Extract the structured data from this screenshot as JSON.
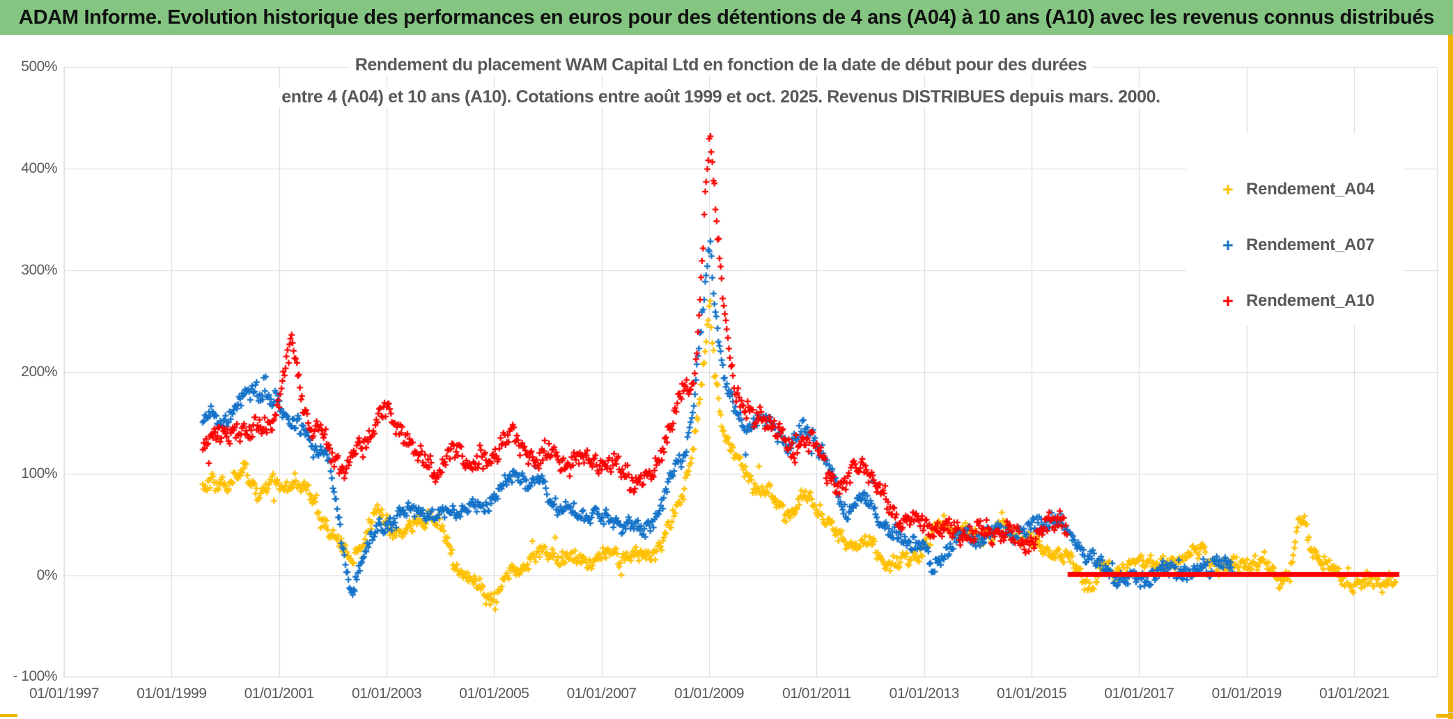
{
  "banner": {
    "title": "ADAM Informe. Evolution historique des performances en euros pour des détentions de 4 ans (A04) à 10 ans (A10) avec les revenus connus distribués",
    "bg_color": "#84C581",
    "accent_color": "#F0B400"
  },
  "chart_data": {
    "type": "scatter",
    "title": "Rendement du placement WAM Capital Ltd en fonction de la date de début pour des durées",
    "subtitle": "entre 4 (A04) et 10 ans (A10). Cotations entre août 1999 et oct. 2025. Revenus DISTRIBUES depuis mars. 2000.",
    "grid": true,
    "legend_position": "right",
    "marker": "+",
    "text_color": "#595959",
    "grid_color": "#D8D8D8",
    "y_axis": {
      "unit": "%",
      "range": [
        -100,
        500
      ],
      "tick_values": [
        500,
        400,
        300,
        200,
        100,
        0,
        -100
      ],
      "tick_labels": [
        "500%",
        "400%",
        "300%",
        "200%",
        "100%",
        "0%",
        "- 100%"
      ]
    },
    "x_axis": {
      "range_years": [
        1997.0,
        2022.55
      ],
      "tick_years": [
        1997,
        1999,
        2001,
        2003,
        2005,
        2007,
        2009,
        2011,
        2013,
        2015,
        2017,
        2019,
        2021
      ],
      "tick_labels": [
        "01/01/1997",
        "01/01/1999",
        "01/01/2001",
        "01/01/2003",
        "01/01/2005",
        "01/01/2007",
        "01/01/2009",
        "01/01/2011",
        "01/01/2013",
        "01/01/2015",
        "01/01/2017",
        "01/01/2019",
        "01/01/2021"
      ]
    },
    "series": [
      {
        "name": "Rendement_A04",
        "color": "#FFC000",
        "marker": "+",
        "start": 1999.58,
        "end": 2021.79,
        "spread": 7,
        "keypoints": [
          [
            1999.58,
            85
          ],
          [
            1999.8,
            88
          ],
          [
            2000.0,
            93
          ],
          [
            2000.35,
            100
          ],
          [
            2000.6,
            84
          ],
          [
            2000.9,
            90
          ],
          [
            2001.05,
            82
          ],
          [
            2001.3,
            97
          ],
          [
            2001.55,
            80
          ],
          [
            2001.75,
            60
          ],
          [
            2001.95,
            45
          ],
          [
            2002.15,
            28
          ],
          [
            2002.35,
            15
          ],
          [
            2002.55,
            30
          ],
          [
            2002.75,
            55
          ],
          [
            2002.9,
            60
          ],
          [
            2003.1,
            45
          ],
          [
            2003.3,
            38
          ],
          [
            2003.55,
            52
          ],
          [
            2003.8,
            58
          ],
          [
            2004.0,
            45
          ],
          [
            2004.3,
            12
          ],
          [
            2004.6,
            -8
          ],
          [
            2004.9,
            -22
          ],
          [
            2005.1,
            -15
          ],
          [
            2005.35,
            2
          ],
          [
            2005.6,
            12
          ],
          [
            2005.9,
            20
          ],
          [
            2006.1,
            22
          ],
          [
            2006.4,
            14
          ],
          [
            2006.7,
            15
          ],
          [
            2007.0,
            18
          ],
          [
            2007.35,
            21
          ],
          [
            2007.7,
            17
          ],
          [
            2008.0,
            23
          ],
          [
            2008.2,
            40
          ],
          [
            2008.45,
            70
          ],
          [
            2008.65,
            110
          ],
          [
            2008.8,
            160
          ],
          [
            2008.95,
            230
          ],
          [
            2009.02,
            270
          ],
          [
            2009.1,
            200
          ],
          [
            2009.25,
            150
          ],
          [
            2009.4,
            125
          ],
          [
            2009.6,
            105
          ],
          [
            2009.85,
            90
          ],
          [
            2010.1,
            80
          ],
          [
            2010.35,
            65
          ],
          [
            2010.55,
            62
          ],
          [
            2010.8,
            78
          ],
          [
            2011.0,
            70
          ],
          [
            2011.25,
            50
          ],
          [
            2011.5,
            30
          ],
          [
            2011.75,
            33
          ],
          [
            2012.0,
            28
          ],
          [
            2012.3,
            14
          ],
          [
            2012.55,
            10
          ],
          [
            2012.8,
            20
          ],
          [
            2013.05,
            30
          ],
          [
            2013.35,
            52
          ],
          [
            2013.6,
            45
          ],
          [
            2013.9,
            36
          ],
          [
            2014.2,
            42
          ],
          [
            2014.5,
            46
          ],
          [
            2014.8,
            38
          ],
          [
            2015.1,
            30
          ],
          [
            2015.4,
            22
          ],
          [
            2015.7,
            15
          ],
          [
            2015.95,
            0
          ],
          [
            2016.1,
            -12
          ],
          [
            2016.35,
            8
          ],
          [
            2016.6,
            4
          ],
          [
            2016.9,
            11
          ],
          [
            2017.2,
            16
          ],
          [
            2017.5,
            7
          ],
          [
            2017.85,
            22
          ],
          [
            2018.15,
            22
          ],
          [
            2018.45,
            8
          ],
          [
            2018.75,
            8
          ],
          [
            2019.05,
            14
          ],
          [
            2019.35,
            10
          ],
          [
            2019.6,
            -4
          ],
          [
            2019.8,
            2
          ],
          [
            2019.98,
            55
          ],
          [
            2020.08,
            50
          ],
          [
            2020.2,
            28
          ],
          [
            2020.4,
            12
          ],
          [
            2020.6,
            4
          ],
          [
            2020.85,
            -2
          ],
          [
            2021.1,
            -12
          ],
          [
            2021.35,
            -5
          ],
          [
            2021.6,
            -5
          ],
          [
            2021.79,
            -6
          ]
        ]
      },
      {
        "name": "Rendement_A07",
        "color": "#1472C8",
        "marker": "+",
        "start": 1999.58,
        "end": 2018.75,
        "spread": 7,
        "keypoints": [
          [
            1999.58,
            148
          ],
          [
            1999.75,
            160
          ],
          [
            1999.95,
            152
          ],
          [
            2000.15,
            162
          ],
          [
            2000.4,
            178
          ],
          [
            2000.55,
            188
          ],
          [
            2000.75,
            172
          ],
          [
            2000.95,
            168
          ],
          [
            2001.15,
            158
          ],
          [
            2001.35,
            148
          ],
          [
            2001.5,
            138
          ],
          [
            2001.65,
            120
          ],
          [
            2001.8,
            128
          ],
          [
            2001.95,
            105
          ],
          [
            2002.1,
            55
          ],
          [
            2002.25,
            0
          ],
          [
            2002.35,
            -15
          ],
          [
            2002.5,
            12
          ],
          [
            2002.7,
            32
          ],
          [
            2002.9,
            50
          ],
          [
            2003.1,
            52
          ],
          [
            2003.35,
            62
          ],
          [
            2003.55,
            68
          ],
          [
            2003.75,
            60
          ],
          [
            2003.95,
            56
          ],
          [
            2004.2,
            66
          ],
          [
            2004.45,
            62
          ],
          [
            2004.7,
            68
          ],
          [
            2004.95,
            74
          ],
          [
            2005.2,
            88
          ],
          [
            2005.45,
            102
          ],
          [
            2005.65,
            88
          ],
          [
            2005.9,
            90
          ],
          [
            2006.1,
            72
          ],
          [
            2006.35,
            62
          ],
          [
            2006.6,
            60
          ],
          [
            2006.85,
            62
          ],
          [
            2007.05,
            52
          ],
          [
            2007.3,
            56
          ],
          [
            2007.55,
            46
          ],
          [
            2007.8,
            43
          ],
          [
            2008.0,
            58
          ],
          [
            2008.2,
            78
          ],
          [
            2008.4,
            110
          ],
          [
            2008.55,
            120
          ],
          [
            2008.7,
            160
          ],
          [
            2008.85,
            240
          ],
          [
            2008.95,
            300
          ],
          [
            2009.02,
            325
          ],
          [
            2009.1,
            275
          ],
          [
            2009.2,
            225
          ],
          [
            2009.35,
            180
          ],
          [
            2009.5,
            155
          ],
          [
            2009.7,
            148
          ],
          [
            2009.9,
            155
          ],
          [
            2010.1,
            148
          ],
          [
            2010.3,
            138
          ],
          [
            2010.5,
            128
          ],
          [
            2010.7,
            140
          ],
          [
            2010.9,
            142
          ],
          [
            2011.1,
            122
          ],
          [
            2011.3,
            95
          ],
          [
            2011.5,
            62
          ],
          [
            2011.65,
            70
          ],
          [
            2011.8,
            76
          ],
          [
            2012.0,
            68
          ],
          [
            2012.2,
            55
          ],
          [
            2012.4,
            42
          ],
          [
            2012.6,
            32
          ],
          [
            2012.8,
            35
          ],
          [
            2013.0,
            28
          ],
          [
            2013.17,
            0
          ],
          [
            2013.3,
            15
          ],
          [
            2013.5,
            32
          ],
          [
            2013.7,
            40
          ],
          [
            2013.9,
            34
          ],
          [
            2014.15,
            40
          ],
          [
            2014.4,
            44
          ],
          [
            2014.65,
            40
          ],
          [
            2014.9,
            44
          ],
          [
            2015.15,
            50
          ],
          [
            2015.4,
            57
          ],
          [
            2015.6,
            48
          ],
          [
            2015.8,
            32
          ],
          [
            2016.0,
            22
          ],
          [
            2016.2,
            10
          ],
          [
            2016.45,
            4
          ],
          [
            2016.7,
            -6
          ],
          [
            2016.95,
            -7
          ],
          [
            2017.2,
            0
          ],
          [
            2017.45,
            4
          ],
          [
            2017.7,
            5
          ],
          [
            2017.95,
            1
          ],
          [
            2018.2,
            6
          ],
          [
            2018.45,
            15
          ],
          [
            2018.6,
            10
          ],
          [
            2018.75,
            6
          ]
        ]
      },
      {
        "name": "Rendement_A10",
        "color": "#FE0000",
        "marker": "+",
        "start": 1999.58,
        "end": 2015.67,
        "spread": 9,
        "keypoints": [
          [
            1999.58,
            128
          ],
          [
            1999.8,
            140
          ],
          [
            2000.0,
            133
          ],
          [
            2000.25,
            147
          ],
          [
            2000.5,
            138
          ],
          [
            2000.75,
            148
          ],
          [
            2000.95,
            158
          ],
          [
            2001.1,
            195
          ],
          [
            2001.2,
            235
          ],
          [
            2001.32,
            210
          ],
          [
            2001.45,
            172
          ],
          [
            2001.6,
            148
          ],
          [
            2001.8,
            140
          ],
          [
            2002.0,
            120
          ],
          [
            2002.2,
            103
          ],
          [
            2002.4,
            118
          ],
          [
            2002.6,
            132
          ],
          [
            2002.8,
            152
          ],
          [
            2002.95,
            162
          ],
          [
            2003.15,
            148
          ],
          [
            2003.35,
            142
          ],
          [
            2003.55,
            118
          ],
          [
            2003.75,
            110
          ],
          [
            2003.95,
            102
          ],
          [
            2004.15,
            115
          ],
          [
            2004.35,
            122
          ],
          [
            2004.55,
            110
          ],
          [
            2004.75,
            118
          ],
          [
            2004.95,
            112
          ],
          [
            2005.15,
            132
          ],
          [
            2005.3,
            140
          ],
          [
            2005.5,
            120
          ],
          [
            2005.75,
            116
          ],
          [
            2006.0,
            122
          ],
          [
            2006.25,
            110
          ],
          [
            2006.5,
            117
          ],
          [
            2006.75,
            110
          ],
          [
            2007.0,
            113
          ],
          [
            2007.3,
            107
          ],
          [
            2007.55,
            95
          ],
          [
            2007.8,
            92
          ],
          [
            2008.0,
            102
          ],
          [
            2008.15,
            128
          ],
          [
            2008.3,
            152
          ],
          [
            2008.45,
            172
          ],
          [
            2008.55,
            182
          ],
          [
            2008.65,
            172
          ],
          [
            2008.78,
            230
          ],
          [
            2008.88,
            330
          ],
          [
            2008.95,
            400
          ],
          [
            2009.02,
            430
          ],
          [
            2009.1,
            375
          ],
          [
            2009.2,
            300
          ],
          [
            2009.32,
            248
          ],
          [
            2009.45,
            195
          ],
          [
            2009.6,
            168
          ],
          [
            2009.8,
            152
          ],
          [
            2010.0,
            158
          ],
          [
            2010.2,
            148
          ],
          [
            2010.4,
            132
          ],
          [
            2010.55,
            120
          ],
          [
            2010.75,
            133
          ],
          [
            2010.95,
            128
          ],
          [
            2011.15,
            108
          ],
          [
            2011.35,
            92
          ],
          [
            2011.5,
            85
          ],
          [
            2011.65,
            98
          ],
          [
            2011.8,
            112
          ],
          [
            2011.95,
            102
          ],
          [
            2012.15,
            82
          ],
          [
            2012.35,
            68
          ],
          [
            2012.55,
            55
          ],
          [
            2012.75,
            50
          ],
          [
            2012.95,
            54
          ],
          [
            2013.15,
            48
          ],
          [
            2013.4,
            44
          ],
          [
            2013.65,
            45
          ],
          [
            2013.9,
            40
          ],
          [
            2014.15,
            42
          ],
          [
            2014.4,
            44
          ],
          [
            2014.65,
            38
          ],
          [
            2014.9,
            34
          ],
          [
            2015.1,
            36
          ],
          [
            2015.3,
            46
          ],
          [
            2015.45,
            55
          ],
          [
            2015.58,
            56
          ],
          [
            2015.67,
            50
          ]
        ]
      }
    ],
    "zero_line": {
      "color": "#FE0000",
      "value": 0,
      "start_year": 2015.67,
      "end_year": 2021.84,
      "thickness": 7
    },
    "legend": [
      {
        "label": "Rendement_A04",
        "color": "#FFC000",
        "marker": "+"
      },
      {
        "label": "Rendement_A07",
        "color": "#1472C8",
        "marker": "+"
      },
      {
        "label": "Rendement_A10",
        "color": "#FE0000",
        "marker": "+"
      }
    ]
  }
}
